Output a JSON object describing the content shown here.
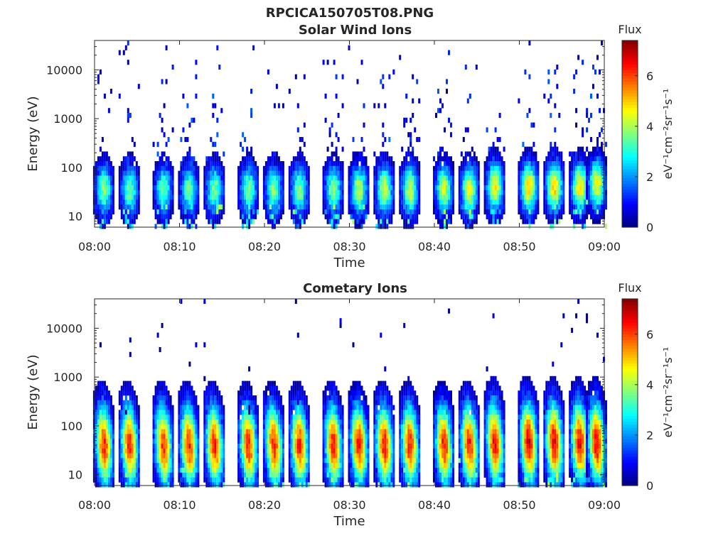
{
  "figure": {
    "title": "RPCICA150705T08.PNG"
  },
  "chart_data": [
    {
      "type": "heatmap",
      "title": "Solar Wind Ions",
      "xlabel": "Time",
      "ylabel": "Energy (eV)",
      "yscale": "log",
      "ylim": [
        6,
        40000
      ],
      "xlim": [
        "08:00",
        "09:00"
      ],
      "x_ticks": [
        "08:00",
        "08:10",
        "08:20",
        "08:30",
        "08:40",
        "08:50",
        "09:00"
      ],
      "y_ticks": [
        "10",
        "100",
        "1000",
        "10000"
      ],
      "colorbar": {
        "title": "Flux",
        "label": "eV⁻¹cm⁻²sr⁻¹s⁻¹",
        "range": [
          0,
          7.4
        ],
        "ticks": [
          "0",
          "2",
          "4",
          "6"
        ],
        "colormap": "jet"
      },
      "pulse_period_min": 3.3,
      "pulses": [
        {
          "t": "08:01",
          "core_eV": 35,
          "peak_flux": 3.8
        },
        {
          "t": "08:04",
          "core_eV": 35,
          "peak_flux": 3.6
        },
        {
          "t": "08:08",
          "core_eV": 35,
          "peak_flux": 3.5
        },
        {
          "t": "08:11",
          "core_eV": 35,
          "peak_flux": 3.5
        },
        {
          "t": "08:14",
          "core_eV": 35,
          "peak_flux": 3.6
        },
        {
          "t": "08:18",
          "core_eV": 35,
          "peak_flux": 3.6
        },
        {
          "t": "08:21",
          "core_eV": 35,
          "peak_flux": 3.7
        },
        {
          "t": "08:24",
          "core_eV": 35,
          "peak_flux": 3.7
        },
        {
          "t": "08:28",
          "core_eV": 35,
          "peak_flux": 3.8
        },
        {
          "t": "08:31",
          "core_eV": 35,
          "peak_flux": 4.2
        },
        {
          "t": "08:34",
          "core_eV": 35,
          "peak_flux": 4.3
        },
        {
          "t": "08:37",
          "core_eV": 35,
          "peak_flux": 4.3
        },
        {
          "t": "08:41",
          "core_eV": 35,
          "peak_flux": 4.3
        },
        {
          "t": "08:44",
          "core_eV": 35,
          "peak_flux": 4.5
        },
        {
          "t": "08:47",
          "core_eV": 40,
          "peak_flux": 4.7
        },
        {
          "t": "08:51",
          "core_eV": 40,
          "peak_flux": 5.0
        },
        {
          "t": "08:54",
          "core_eV": 40,
          "peak_flux": 5.0
        },
        {
          "t": "08:57",
          "core_eV": 40,
          "peak_flux": 4.8
        },
        {
          "t": "08:59",
          "core_eV": 45,
          "peak_flux": 4.7
        }
      ]
    },
    {
      "type": "heatmap",
      "title": "Cometary Ions",
      "xlabel": "Time",
      "ylabel": "Energy (eV)",
      "yscale": "log",
      "ylim": [
        6,
        40000
      ],
      "xlim": [
        "08:00",
        "09:00"
      ],
      "x_ticks": [
        "08:00",
        "08:10",
        "08:20",
        "08:30",
        "08:40",
        "08:50",
        "09:00"
      ],
      "y_ticks": [
        "10",
        "100",
        "1000",
        "10000"
      ],
      "colorbar": {
        "title": "Flux",
        "label": "eV⁻¹cm⁻²sr⁻¹s⁻¹",
        "range": [
          0,
          7.4
        ],
        "ticks": [
          "0",
          "2",
          "4",
          "6"
        ],
        "colormap": "jet"
      },
      "pulse_period_min": 3.3,
      "pulses": [
        {
          "t": "08:01",
          "core_eV": 40,
          "peak_flux": 6.3
        },
        {
          "t": "08:04",
          "core_eV": 40,
          "peak_flux": 6.3
        },
        {
          "t": "08:08",
          "core_eV": 40,
          "peak_flux": 6.2
        },
        {
          "t": "08:11",
          "core_eV": 40,
          "peak_flux": 6.3
        },
        {
          "t": "08:14",
          "core_eV": 40,
          "peak_flux": 6.3
        },
        {
          "t": "08:18",
          "core_eV": 40,
          "peak_flux": 6.3
        },
        {
          "t": "08:21",
          "core_eV": 40,
          "peak_flux": 6.3
        },
        {
          "t": "08:24",
          "core_eV": 40,
          "peak_flux": 6.3
        },
        {
          "t": "08:28",
          "core_eV": 40,
          "peak_flux": 6.3
        },
        {
          "t": "08:31",
          "core_eV": 40,
          "peak_flux": 6.3
        },
        {
          "t": "08:34",
          "core_eV": 40,
          "peak_flux": 6.4
        },
        {
          "t": "08:37",
          "core_eV": 40,
          "peak_flux": 6.3
        },
        {
          "t": "08:41",
          "core_eV": 40,
          "peak_flux": 6.3
        },
        {
          "t": "08:44",
          "core_eV": 40,
          "peak_flux": 6.4
        },
        {
          "t": "08:47",
          "core_eV": 45,
          "peak_flux": 6.6
        },
        {
          "t": "08:51",
          "core_eV": 45,
          "peak_flux": 6.8
        },
        {
          "t": "08:54",
          "core_eV": 45,
          "peak_flux": 6.7
        },
        {
          "t": "08:57",
          "core_eV": 45,
          "peak_flux": 6.6
        },
        {
          "t": "08:59",
          "core_eV": 45,
          "peak_flux": 6.6
        }
      ]
    }
  ]
}
